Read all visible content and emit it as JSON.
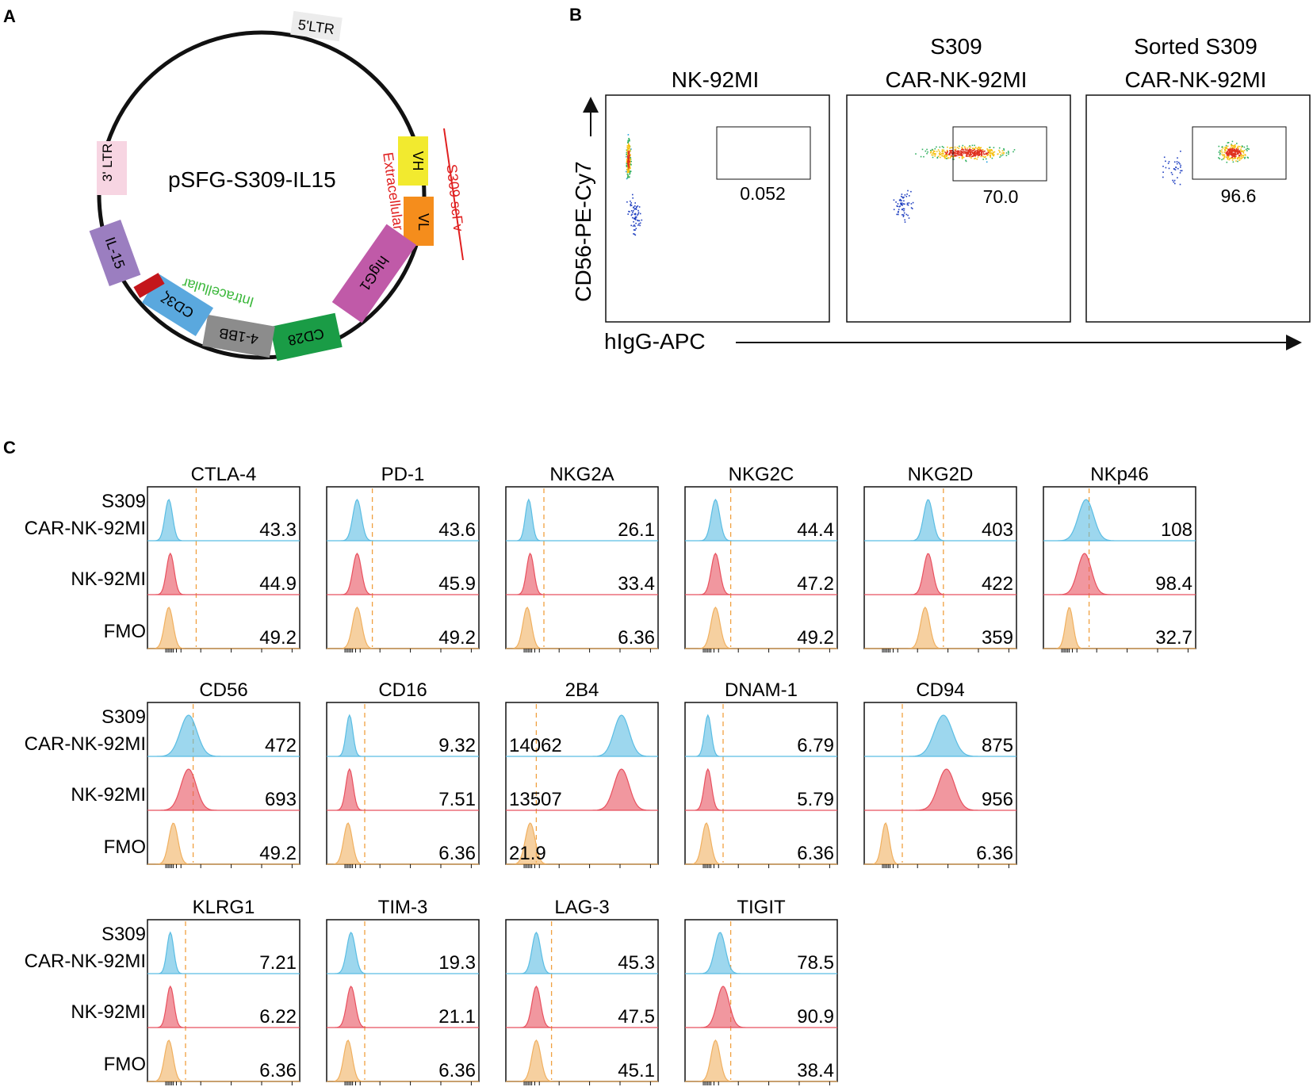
{
  "colors": {
    "blue": "#5bbde3",
    "red": "#e8515f",
    "orange": "#f0b060",
    "gate_orange": "#f0a040",
    "plasmid_label_red": "#e02020",
    "plasmid_label_green": "#3cb83c"
  },
  "panel_a": {
    "letter": "A",
    "title": "pSFG-S309-IL15",
    "segments": {
      "ltr5": "5'LTR",
      "ltr3": "3' LTR",
      "vh": "VH",
      "vl": "VL",
      "higg1": "hIgG1",
      "cd28": "CD28",
      "bb41": "4-1BB",
      "cd3z": "CD3ζ",
      "il15": "IL-15"
    },
    "annotations": {
      "scfv": "S309 scFv",
      "extracellular": "Extracellular",
      "intracellular": "Intracellular"
    }
  },
  "panel_b": {
    "letter": "B",
    "y_axis": "CD56-PE-Cy7",
    "x_axis": "hIgG-APC",
    "plots": [
      {
        "title_line1": "",
        "title_line2": "NK-92MI",
        "gate_value": "0.052"
      },
      {
        "title_line1": "S309",
        "title_line2": "CAR-NK-92MI",
        "gate_value": "70.0"
      },
      {
        "title_line1": "Sorted S309",
        "title_line2": "CAR-NK-92MI",
        "gate_value": "96.6"
      }
    ]
  },
  "panel_c": {
    "letter": "C",
    "row_labels": {
      "car_line1": "S309",
      "car_line2": "CAR-NK-92MI",
      "nk": "NK-92MI",
      "fmo": "FMO"
    },
    "markers": [
      {
        "name": "CTLA-4",
        "values": [
          "43.3",
          "44.9",
          "49.2"
        ],
        "peaks": [
          0.14,
          0.15,
          0.14
        ],
        "widths": [
          0.025,
          0.025,
          0.028
        ],
        "gate": 0.32
      },
      {
        "name": "PD-1",
        "values": [
          "43.6",
          "45.9",
          "49.2"
        ],
        "peaks": [
          0.2,
          0.2,
          0.2
        ],
        "widths": [
          0.028,
          0.028,
          0.03
        ],
        "gate": 0.3
      },
      {
        "name": "NKG2A",
        "values": [
          "26.1",
          "33.4",
          "6.36"
        ],
        "peaks": [
          0.15,
          0.16,
          0.14
        ],
        "widths": [
          0.022,
          0.024,
          0.028
        ],
        "gate": 0.25
      },
      {
        "name": "NKG2C",
        "values": [
          "44.4",
          "47.2",
          "49.2"
        ],
        "peaks": [
          0.2,
          0.2,
          0.2
        ],
        "widths": [
          0.028,
          0.028,
          0.03
        ],
        "gate": 0.3
      },
      {
        "name": "NKG2D",
        "values": [
          "403",
          "422",
          "359"
        ],
        "peaks": [
          0.42,
          0.42,
          0.4
        ],
        "widths": [
          0.03,
          0.03,
          0.03
        ],
        "gate": 0.52
      },
      {
        "name": "NKp46",
        "values": [
          "108",
          "98.4",
          "32.7"
        ],
        "peaks": [
          0.28,
          0.27,
          0.17
        ],
        "widths": [
          0.05,
          0.045,
          0.025
        ],
        "gate": 0.3
      },
      {
        "name": "CD56",
        "values": [
          "472",
          "693",
          "49.2"
        ],
        "peaks": [
          0.27,
          0.27,
          0.17
        ],
        "widths": [
          0.055,
          0.05,
          0.03
        ],
        "gate": 0.3
      },
      {
        "name": "CD16",
        "values": [
          "9.32",
          "7.51",
          "6.36"
        ],
        "peaks": [
          0.15,
          0.15,
          0.14
        ],
        "widths": [
          0.022,
          0.024,
          0.028
        ],
        "gate": 0.25
      },
      {
        "name": "2B4",
        "values": [
          "14062",
          "13507",
          "21.9"
        ],
        "peaks": [
          0.76,
          0.76,
          0.16
        ],
        "widths": [
          0.05,
          0.05,
          0.032
        ],
        "gate": 0.2,
        "left_values": true
      },
      {
        "name": "DNAM-1",
        "values": [
          "6.79",
          "5.79",
          "6.36"
        ],
        "peaks": [
          0.15,
          0.15,
          0.14
        ],
        "widths": [
          0.022,
          0.024,
          0.028
        ],
        "gate": 0.25
      },
      {
        "name": "CD94",
        "values": [
          "875",
          "956",
          "6.36"
        ],
        "peaks": [
          0.52,
          0.54,
          0.14
        ],
        "widths": [
          0.06,
          0.055,
          0.025
        ],
        "gate": 0.25
      },
      {
        "name": "KLRG1",
        "values": [
          "7.21",
          "6.22",
          "6.36"
        ],
        "peaks": [
          0.15,
          0.15,
          0.14
        ],
        "widths": [
          0.022,
          0.024,
          0.028
        ],
        "gate": 0.25
      },
      {
        "name": "TIM-3",
        "values": [
          "19.3",
          "21.1",
          "6.36"
        ],
        "peaks": [
          0.16,
          0.16,
          0.14
        ],
        "widths": [
          0.028,
          0.028,
          0.028
        ],
        "gate": 0.25
      },
      {
        "name": "LAG-3",
        "values": [
          "45.3",
          "47.5",
          "45.1"
        ],
        "peaks": [
          0.2,
          0.2,
          0.2
        ],
        "widths": [
          0.028,
          0.028,
          0.03
        ],
        "gate": 0.3
      },
      {
        "name": "TIGIT",
        "values": [
          "78.5",
          "90.9",
          "38.4"
        ],
        "peaks": [
          0.23,
          0.25,
          0.2
        ],
        "widths": [
          0.035,
          0.04,
          0.03
        ],
        "gate": 0.3
      }
    ]
  }
}
